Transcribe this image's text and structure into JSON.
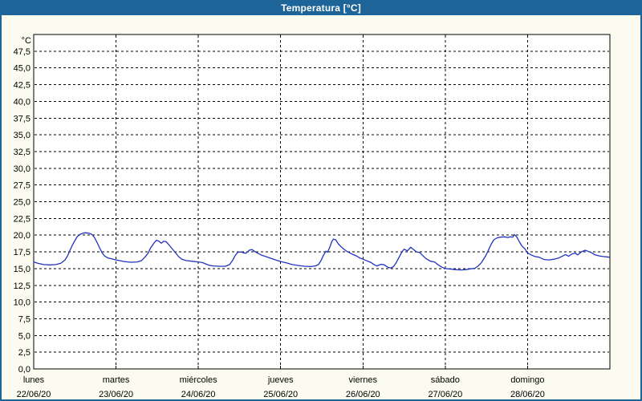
{
  "window": {
    "title": "Temperatura [°C]"
  },
  "colors": {
    "titlebar": "#1d6598",
    "window_border": "#1d6598",
    "background": "#fbfbef",
    "plot_background": "#ffffff",
    "grid": "#000000",
    "text": "#000000",
    "line": "#2233bf"
  },
  "chart_data": {
    "type": "line",
    "title": "Temperatura [°C]",
    "y_unit": "°C",
    "ylim": [
      0,
      50
    ],
    "y_tick_step": 2.5,
    "y_tick_labels": [
      "0,0",
      "2,5",
      "5,0",
      "7,5",
      "10,0",
      "12,5",
      "15,0",
      "17,5",
      "20,0",
      "22,5",
      "25,0",
      "27,5",
      "30,0",
      "32,5",
      "35,0",
      "37,5",
      "40,0",
      "42,5",
      "45,0",
      "47,5"
    ],
    "grid": "dashed",
    "legend": "none",
    "line_color": "#2233bf",
    "x_axis": {
      "days": [
        {
          "name": "lunes",
          "date": "22/06/20"
        },
        {
          "name": "martes",
          "date": "23/06/20"
        },
        {
          "name": "miércoles",
          "date": "24/06/20"
        },
        {
          "name": "jueves",
          "date": "25/06/20"
        },
        {
          "name": "viernes",
          "date": "26/06/20"
        },
        {
          "name": "sábado",
          "date": "27/06/20"
        },
        {
          "name": "domingo",
          "date": "28/06/20"
        }
      ]
    },
    "series": [
      {
        "name": "Temperatura",
        "x_unit_note": "x = days since 22/06/20 00:00, y = °C",
        "points": [
          [
            0.0,
            16.0
          ],
          [
            0.05,
            15.8
          ],
          [
            0.12,
            15.6
          ],
          [
            0.2,
            15.55
          ],
          [
            0.27,
            15.6
          ],
          [
            0.33,
            15.8
          ],
          [
            0.38,
            16.3
          ],
          [
            0.41,
            16.9
          ],
          [
            0.44,
            17.7
          ],
          [
            0.47,
            18.5
          ],
          [
            0.5,
            19.2
          ],
          [
            0.53,
            19.8
          ],
          [
            0.56,
            20.1
          ],
          [
            0.6,
            20.3
          ],
          [
            0.63,
            20.35
          ],
          [
            0.67,
            20.3
          ],
          [
            0.71,
            20.1
          ],
          [
            0.74,
            19.6
          ],
          [
            0.77,
            18.9
          ],
          [
            0.8,
            18.1
          ],
          [
            0.83,
            17.4
          ],
          [
            0.86,
            16.9
          ],
          [
            0.9,
            16.6
          ],
          [
            0.95,
            16.45
          ],
          [
            1.0,
            16.3
          ],
          [
            1.04,
            16.2
          ],
          [
            1.1,
            16.05
          ],
          [
            1.18,
            15.95
          ],
          [
            1.26,
            16.0
          ],
          [
            1.31,
            16.2
          ],
          [
            1.35,
            16.7
          ],
          [
            1.39,
            17.3
          ],
          [
            1.42,
            18.1
          ],
          [
            1.46,
            18.8
          ],
          [
            1.49,
            19.25
          ],
          [
            1.52,
            19.1
          ],
          [
            1.55,
            18.8
          ],
          [
            1.58,
            19.1
          ],
          [
            1.61,
            19.0
          ],
          [
            1.64,
            18.6
          ],
          [
            1.68,
            18.0
          ],
          [
            1.72,
            17.4
          ],
          [
            1.76,
            16.8
          ],
          [
            1.8,
            16.4
          ],
          [
            1.85,
            16.2
          ],
          [
            1.92,
            16.1
          ],
          [
            2.0,
            16.0
          ],
          [
            2.05,
            15.9
          ],
          [
            2.09,
            15.7
          ],
          [
            2.13,
            15.5
          ],
          [
            2.18,
            15.4
          ],
          [
            2.26,
            15.35
          ],
          [
            2.33,
            15.35
          ],
          [
            2.38,
            15.6
          ],
          [
            2.42,
            16.3
          ],
          [
            2.45,
            17.0
          ],
          [
            2.48,
            17.45
          ],
          [
            2.52,
            17.5
          ],
          [
            2.55,
            17.35
          ],
          [
            2.58,
            17.3
          ],
          [
            2.62,
            17.75
          ],
          [
            2.65,
            17.85
          ],
          [
            2.68,
            17.6
          ],
          [
            2.72,
            17.3
          ],
          [
            2.77,
            17.0
          ],
          [
            2.83,
            16.75
          ],
          [
            2.89,
            16.5
          ],
          [
            2.95,
            16.25
          ],
          [
            3.0,
            16.05
          ],
          [
            3.07,
            15.85
          ],
          [
            3.14,
            15.6
          ],
          [
            3.22,
            15.45
          ],
          [
            3.29,
            15.35
          ],
          [
            3.36,
            15.3
          ],
          [
            3.42,
            15.4
          ],
          [
            3.46,
            15.6
          ],
          [
            3.49,
            16.2
          ],
          [
            3.52,
            17.0
          ],
          [
            3.55,
            17.6
          ],
          [
            3.57,
            17.45
          ],
          [
            3.6,
            18.3
          ],
          [
            3.62,
            19.0
          ],
          [
            3.64,
            19.4
          ],
          [
            3.67,
            19.3
          ],
          [
            3.7,
            18.7
          ],
          [
            3.74,
            18.2
          ],
          [
            3.77,
            17.9
          ],
          [
            3.8,
            17.6
          ],
          [
            3.84,
            17.35
          ],
          [
            3.88,
            17.1
          ],
          [
            3.92,
            16.9
          ],
          [
            3.96,
            16.6
          ],
          [
            4.0,
            16.4
          ],
          [
            4.05,
            16.15
          ],
          [
            4.1,
            15.9
          ],
          [
            4.14,
            15.55
          ],
          [
            4.17,
            15.4
          ],
          [
            4.22,
            15.65
          ],
          [
            4.26,
            15.55
          ],
          [
            4.3,
            15.2
          ],
          [
            4.34,
            15.1
          ],
          [
            4.37,
            15.3
          ],
          [
            4.4,
            15.8
          ],
          [
            4.43,
            16.5
          ],
          [
            4.46,
            17.2
          ],
          [
            4.48,
            17.6
          ],
          [
            4.5,
            17.9
          ],
          [
            4.54,
            17.65
          ],
          [
            4.58,
            18.2
          ],
          [
            4.61,
            17.9
          ],
          [
            4.65,
            17.5
          ],
          [
            4.69,
            17.4
          ],
          [
            4.73,
            16.9
          ],
          [
            4.77,
            16.45
          ],
          [
            4.82,
            16.1
          ],
          [
            4.87,
            16.0
          ],
          [
            4.92,
            15.5
          ],
          [
            4.96,
            15.2
          ],
          [
            5.0,
            15.0
          ],
          [
            5.05,
            14.95
          ],
          [
            5.12,
            14.85
          ],
          [
            5.19,
            14.8
          ],
          [
            5.25,
            14.85
          ],
          [
            5.3,
            14.95
          ],
          [
            5.36,
            15.05
          ],
          [
            5.4,
            15.4
          ],
          [
            5.44,
            15.9
          ],
          [
            5.49,
            16.9
          ],
          [
            5.53,
            17.9
          ],
          [
            5.56,
            18.7
          ],
          [
            5.59,
            19.3
          ],
          [
            5.63,
            19.6
          ],
          [
            5.67,
            19.7
          ],
          [
            5.72,
            19.75
          ],
          [
            5.76,
            19.65
          ],
          [
            5.79,
            19.75
          ],
          [
            5.82,
            19.7
          ],
          [
            5.84,
            20.1
          ],
          [
            5.87,
            19.7
          ],
          [
            5.9,
            19.0
          ],
          [
            5.93,
            18.4
          ],
          [
            5.97,
            17.9
          ],
          [
            6.0,
            17.35
          ],
          [
            6.05,
            17.0
          ],
          [
            6.09,
            16.8
          ],
          [
            6.14,
            16.7
          ],
          [
            6.2,
            16.35
          ],
          [
            6.26,
            16.3
          ],
          [
            6.32,
            16.4
          ],
          [
            6.38,
            16.6
          ],
          [
            6.43,
            16.9
          ],
          [
            6.46,
            17.1
          ],
          [
            6.5,
            16.85
          ],
          [
            6.54,
            17.2
          ],
          [
            6.58,
            17.3
          ],
          [
            6.61,
            17.05
          ],
          [
            6.65,
            17.5
          ],
          [
            6.7,
            17.75
          ],
          [
            6.73,
            17.6
          ],
          [
            6.78,
            17.35
          ],
          [
            6.82,
            17.05
          ],
          [
            6.87,
            16.9
          ],
          [
            6.92,
            16.8
          ],
          [
            6.96,
            16.75
          ],
          [
            6.99,
            16.7
          ]
        ]
      }
    ]
  }
}
